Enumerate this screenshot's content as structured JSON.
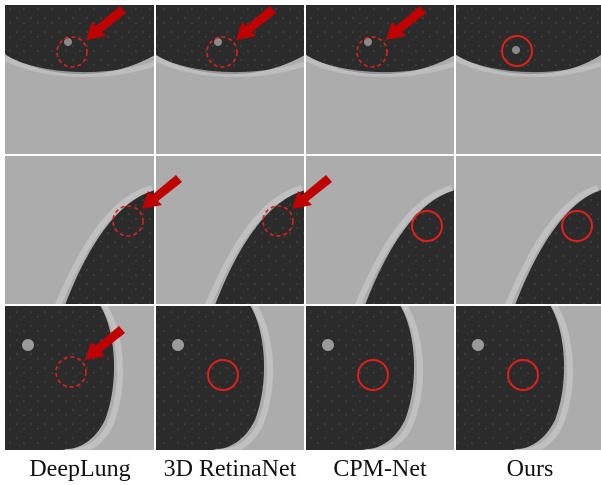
{
  "columns": [
    {
      "label": "DeepLung"
    },
    {
      "label": "3D RetinaNet"
    },
    {
      "label": "CPM-Net"
    },
    {
      "label": "Ours"
    }
  ],
  "rows": [
    [
      {
        "marker": "dashed",
        "arrow": true
      },
      {
        "marker": "dashed",
        "arrow": true
      },
      {
        "marker": "dashed",
        "arrow": true
      },
      {
        "marker": "solid",
        "arrow": false
      }
    ],
    [
      {
        "marker": "dashed",
        "arrow": true
      },
      {
        "marker": "dashed",
        "arrow": true
      },
      {
        "marker": "solid",
        "arrow": false
      },
      {
        "marker": "solid",
        "arrow": false
      }
    ],
    [
      {
        "marker": "dashed",
        "arrow": true
      },
      {
        "marker": "solid",
        "arrow": false
      },
      {
        "marker": "solid",
        "arrow": false
      },
      {
        "marker": "solid",
        "arrow": false
      }
    ]
  ],
  "colors": {
    "marker": "#e0201c",
    "arrow": "#c00000",
    "background": "#a9a9a9",
    "lung": "#2a2a2a"
  }
}
